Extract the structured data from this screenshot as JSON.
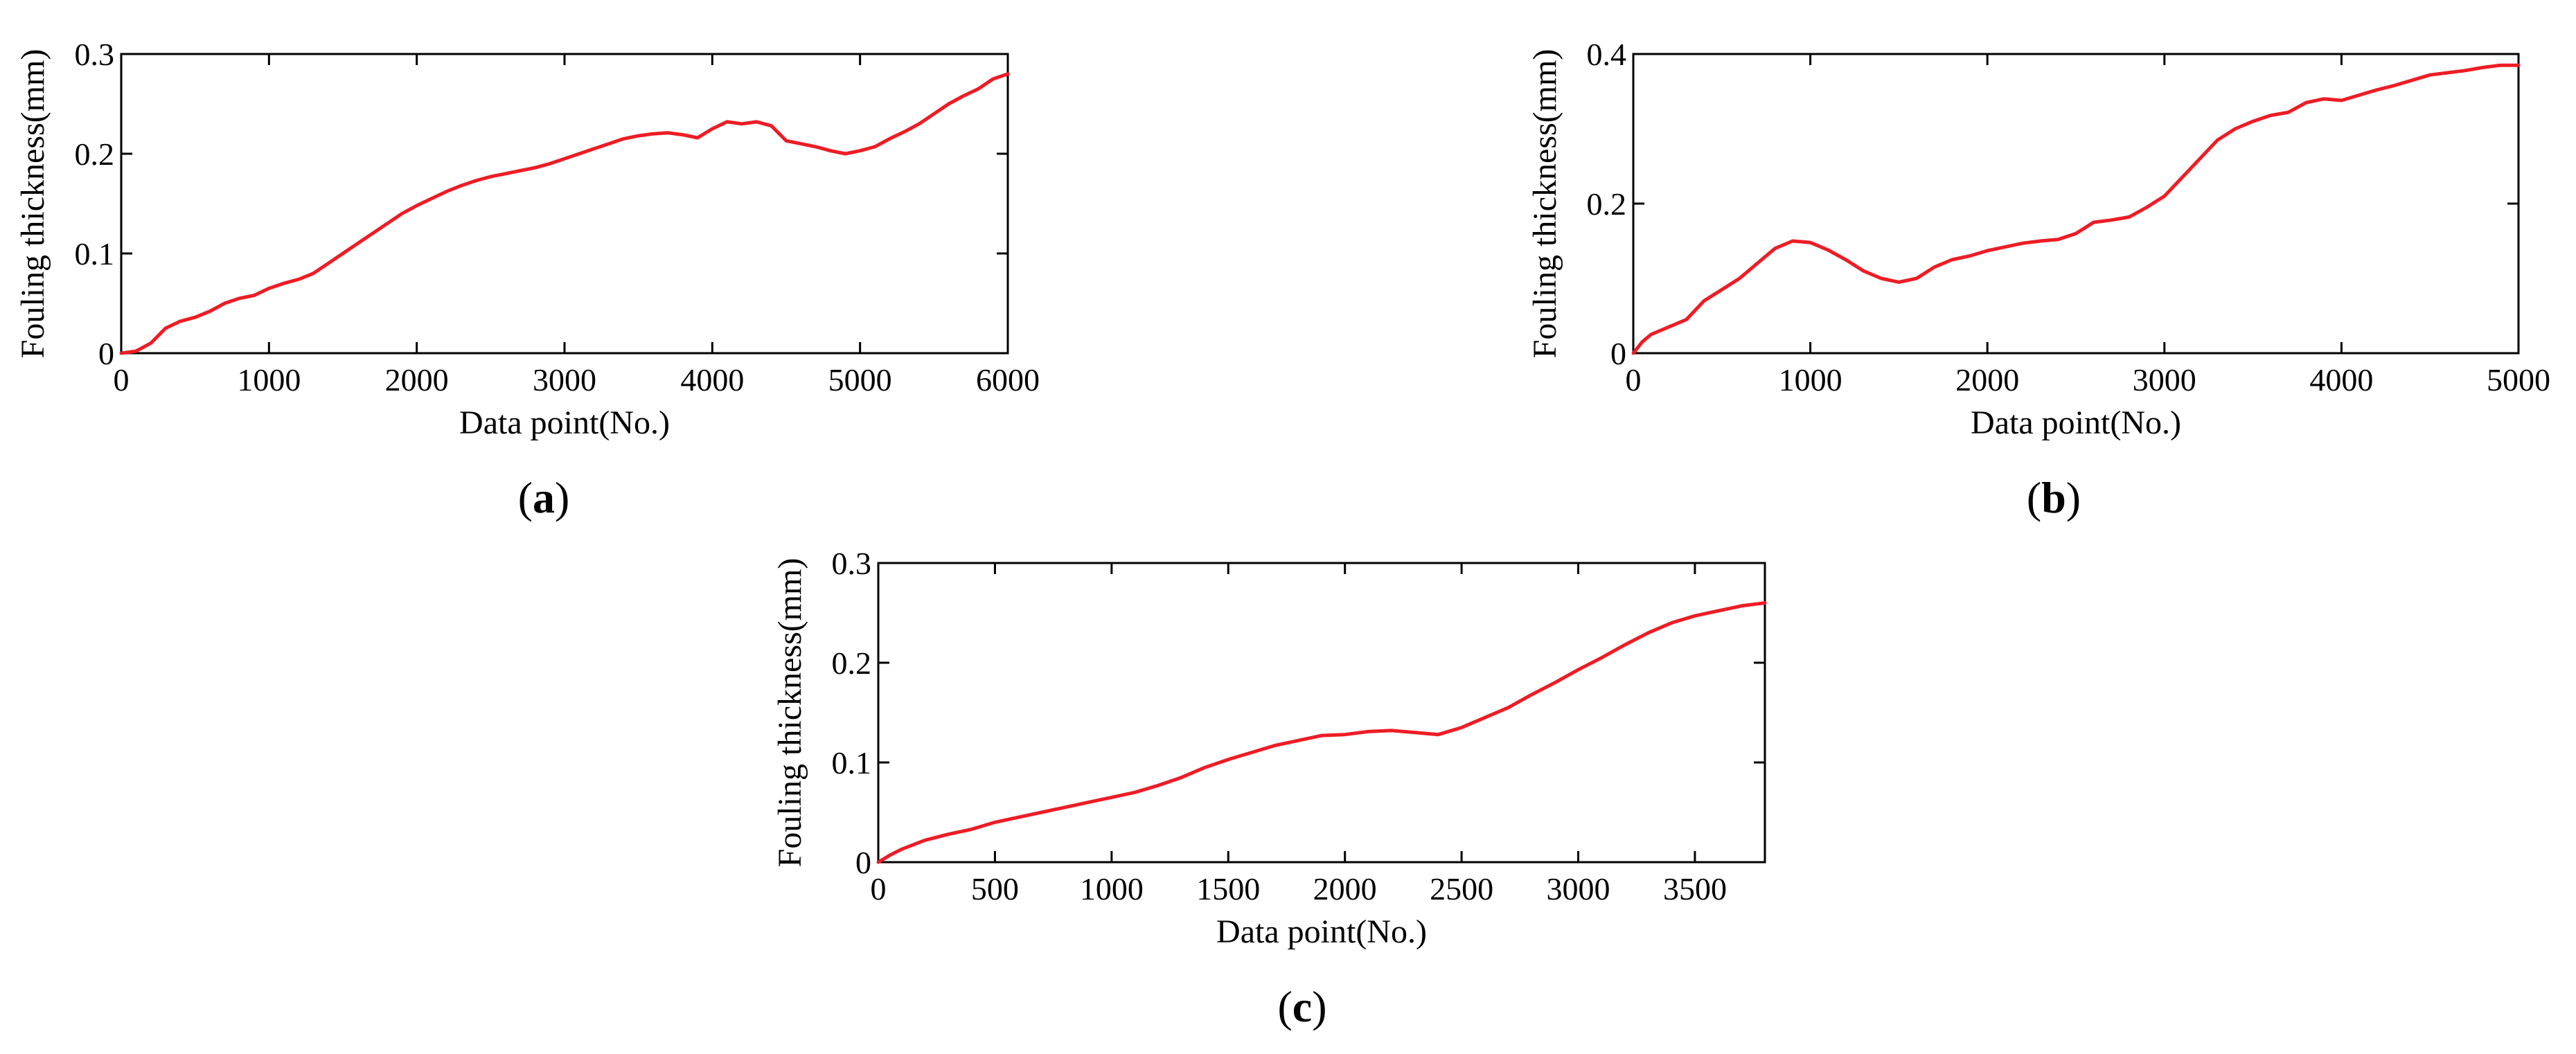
{
  "chart_data": [
    {
      "id": "a",
      "type": "line",
      "panel_label": {
        "open": "(",
        "letter": "a",
        "close": ")"
      },
      "xlabel": "Data point(No.)",
      "ylabel": "Fouling thickness(mm)",
      "xlim": [
        0,
        6000
      ],
      "ylim": [
        0,
        0.3
      ],
      "xticks": [
        0,
        1000,
        2000,
        3000,
        4000,
        5000,
        6000
      ],
      "yticks": [
        0,
        0.1,
        0.2,
        0.3
      ],
      "xtick_labels": [
        "0",
        "1000",
        "2000",
        "3000",
        "4000",
        "5000",
        "6000"
      ],
      "ytick_labels": [
        "0",
        "0.1",
        "0.2",
        "0.3"
      ],
      "grid": false,
      "series": [
        {
          "name": "Fouling thickness",
          "color": "#ee1c25",
          "x": [
            0,
            100,
            200,
            300,
            400,
            500,
            600,
            700,
            800,
            900,
            1000,
            1100,
            1200,
            1300,
            1400,
            1500,
            1600,
            1700,
            1800,
            1900,
            2000,
            2100,
            2200,
            2300,
            2400,
            2500,
            2600,
            2700,
            2800,
            2900,
            3000,
            3100,
            3200,
            3300,
            3400,
            3500,
            3600,
            3700,
            3800,
            3900,
            4000,
            4100,
            4200,
            4300,
            4400,
            4500,
            4600,
            4700,
            4800,
            4900,
            5000,
            5100,
            5200,
            5300,
            5400,
            5500,
            5600,
            5700,
            5800,
            5900,
            6000
          ],
          "y": [
            0,
            0.002,
            0.01,
            0.025,
            0.032,
            0.036,
            0.042,
            0.05,
            0.055,
            0.058,
            0.065,
            0.07,
            0.074,
            0.08,
            0.09,
            0.1,
            0.11,
            0.12,
            0.13,
            0.14,
            0.148,
            0.155,
            0.162,
            0.168,
            0.173,
            0.177,
            0.18,
            0.183,
            0.186,
            0.19,
            0.195,
            0.2,
            0.205,
            0.21,
            0.215,
            0.218,
            0.22,
            0.221,
            0.219,
            0.216,
            0.225,
            0.232,
            0.23,
            0.232,
            0.228,
            0.213,
            0.21,
            0.207,
            0.203,
            0.2,
            0.203,
            0.207,
            0.215,
            0.222,
            0.23,
            0.24,
            0.25,
            0.258,
            0.265,
            0.275,
            0.28
          ]
        }
      ]
    },
    {
      "id": "b",
      "type": "line",
      "panel_label": {
        "open": "(",
        "letter": "b",
        "close": ")"
      },
      "xlabel": "Data point(No.)",
      "ylabel": "Fouling thickness(mm)",
      "xlim": [
        0,
        5000
      ],
      "ylim": [
        0,
        0.4
      ],
      "xticks": [
        0,
        1000,
        2000,
        3000,
        4000,
        5000
      ],
      "yticks": [
        0,
        0.2,
        0.4
      ],
      "xtick_labels": [
        "0",
        "1000",
        "2000",
        "3000",
        "4000",
        "5000"
      ],
      "ytick_labels": [
        "0",
        "0.2",
        "0.4"
      ],
      "grid": false,
      "series": [
        {
          "name": "Fouling thickness",
          "color": "#ee1c25",
          "x": [
            0,
            50,
            100,
            200,
            300,
            400,
            500,
            600,
            700,
            800,
            900,
            1000,
            1100,
            1200,
            1300,
            1400,
            1500,
            1600,
            1700,
            1800,
            1900,
            2000,
            2100,
            2200,
            2300,
            2400,
            2500,
            2600,
            2700,
            2800,
            2900,
            3000,
            3100,
            3200,
            3300,
            3400,
            3500,
            3600,
            3700,
            3800,
            3900,
            4000,
            4100,
            4200,
            4300,
            4400,
            4500,
            4600,
            4700,
            4800,
            4900,
            5000
          ],
          "y": [
            0,
            0.015,
            0.025,
            0.035,
            0.045,
            0.07,
            0.085,
            0.1,
            0.12,
            0.14,
            0.15,
            0.148,
            0.138,
            0.125,
            0.11,
            0.1,
            0.095,
            0.1,
            0.115,
            0.125,
            0.13,
            0.137,
            0.142,
            0.147,
            0.15,
            0.152,
            0.16,
            0.175,
            0.178,
            0.182,
            0.195,
            0.21,
            0.235,
            0.26,
            0.285,
            0.3,
            0.31,
            0.318,
            0.322,
            0.335,
            0.34,
            0.338,
            0.345,
            0.352,
            0.358,
            0.365,
            0.372,
            0.375,
            0.378,
            0.382,
            0.385,
            0.385
          ]
        }
      ]
    },
    {
      "id": "c",
      "type": "line",
      "panel_label": {
        "open": "(",
        "letter": "c",
        "close": ")"
      },
      "xlabel": "Data point(No.)",
      "ylabel": "Fouling thickness(mm)",
      "xlim": [
        0,
        3800
      ],
      "ylim": [
        0,
        0.3
      ],
      "xticks": [
        0,
        500,
        1000,
        1500,
        2000,
        2500,
        3000,
        3500
      ],
      "yticks": [
        0,
        0.1,
        0.2,
        0.3
      ],
      "xtick_labels": [
        "0",
        "500",
        "1000",
        "1500",
        "2000",
        "2500",
        "3000",
        "3500"
      ],
      "ytick_labels": [
        "0",
        "0.1",
        "0.2",
        "0.3"
      ],
      "grid": false,
      "series": [
        {
          "name": "Fouling thickness",
          "color": "#ee1c25",
          "x": [
            0,
            50,
            100,
            200,
            300,
            400,
            500,
            600,
            700,
            800,
            900,
            1000,
            1100,
            1200,
            1300,
            1400,
            1500,
            1600,
            1700,
            1800,
            1900,
            2000,
            2100,
            2200,
            2300,
            2400,
            2500,
            2600,
            2700,
            2800,
            2900,
            3000,
            3100,
            3200,
            3300,
            3400,
            3500,
            3600,
            3700,
            3800
          ],
          "y": [
            0,
            0.007,
            0.013,
            0.022,
            0.028,
            0.033,
            0.04,
            0.045,
            0.05,
            0.055,
            0.06,
            0.065,
            0.07,
            0.077,
            0.085,
            0.095,
            0.103,
            0.11,
            0.117,
            0.122,
            0.127,
            0.128,
            0.131,
            0.132,
            0.13,
            0.128,
            0.135,
            0.145,
            0.155,
            0.168,
            0.18,
            0.193,
            0.205,
            0.218,
            0.23,
            0.24,
            0.247,
            0.252,
            0.257,
            0.26
          ]
        }
      ]
    }
  ]
}
